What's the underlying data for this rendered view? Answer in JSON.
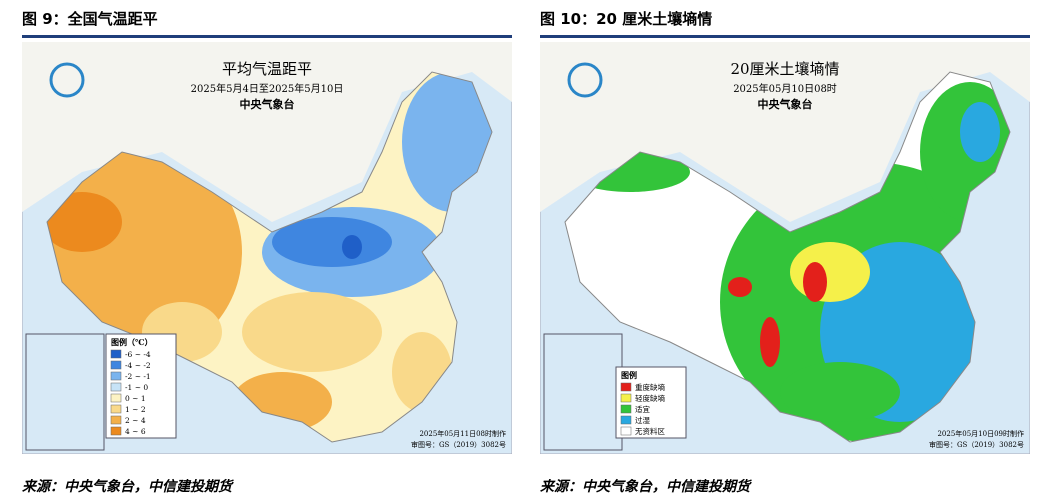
{
  "figures": [
    {
      "heading": "图 9：全国气温距平",
      "map_title": "平均气温距平",
      "map_subtitle": "2025年5月4日至2025年5月10日",
      "agency": "中央气象台",
      "legend_title": "图例（℃）",
      "legend": [
        {
          "label": "-6 ~ -4",
          "color": "#1f5fc8"
        },
        {
          "label": "-4 ~ -2",
          "color": "#3f86e0"
        },
        {
          "label": "-2 ~ -1",
          "color": "#7ab4ee"
        },
        {
          "label": "-1 ~ 0",
          "color": "#c7e3f7"
        },
        {
          "label": "0 ~ 1",
          "color": "#fdf3c4"
        },
        {
          "label": "1 ~ 2",
          "color": "#f9d98a"
        },
        {
          "label": "2 ~ 4",
          "color": "#f3b04a"
        },
        {
          "label": "4 ~ 6",
          "color": "#ec8a1e"
        }
      ],
      "made": "2025年05月11日08时制作",
      "approval": "审图号：GS（2019）3082号",
      "source": "来源：中央气象台，中信建投期货"
    },
    {
      "heading": "图 10：20 厘米土壤墒情",
      "map_title": "20厘米土壤墒情",
      "map_subtitle": "2025年05月10日08时",
      "agency": "中央气象台",
      "legend_title": "图例",
      "legend": [
        {
          "label": "重度缺墒",
          "color": "#e3201b"
        },
        {
          "label": "轻度缺墒",
          "color": "#f5f04a"
        },
        {
          "label": "适宜",
          "color": "#33c43a"
        },
        {
          "label": "过湿",
          "color": "#29a8e0"
        },
        {
          "label": "无资料区",
          "color": "#ffffff"
        }
      ],
      "made": "2025年05月10日09时制作",
      "approval": "审图号：GS（2019）3082号",
      "source": "来源：中央气象台，中信建投期货"
    }
  ]
}
